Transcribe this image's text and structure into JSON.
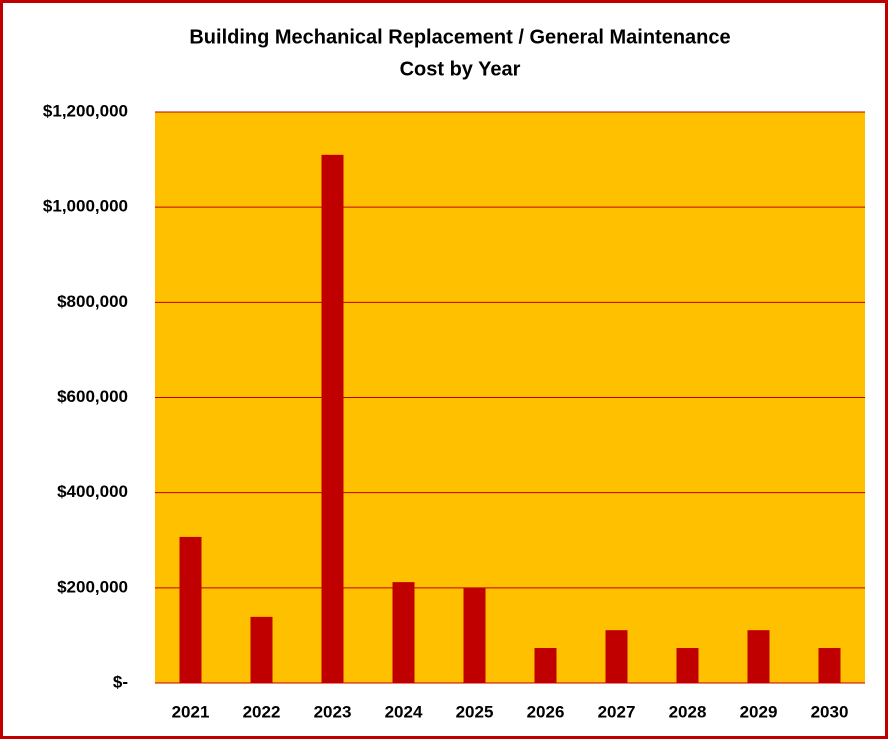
{
  "chart_data": {
    "type": "bar",
    "title": [
      "Building Mechanical Replacement / General Maintenance",
      "Cost by Year"
    ],
    "categories": [
      "2021",
      "2022",
      "2023",
      "2024",
      "2025",
      "2026",
      "2027",
      "2028",
      "2029",
      "2030"
    ],
    "values": [
      307000,
      139000,
      1110000,
      212000,
      200000,
      73500,
      111000,
      73500,
      111000,
      73500
    ],
    "color": "#c00000",
    "plot_background": "#ffc000",
    "grid_color": "#c00000",
    "ylim": [
      0,
      1200000
    ],
    "yticks": [
      {
        "value": 0,
        "label": "$-"
      },
      {
        "value": 200000,
        "label": "$200,000"
      },
      {
        "value": 400000,
        "label": "$400,000"
      },
      {
        "value": 600000,
        "label": "$600,000"
      },
      {
        "value": 800000,
        "label": "$800,000"
      },
      {
        "value": 1000000,
        "label": "$1,000,000"
      },
      {
        "value": 1200000,
        "label": "$1,200,000"
      }
    ],
    "grid": true
  }
}
